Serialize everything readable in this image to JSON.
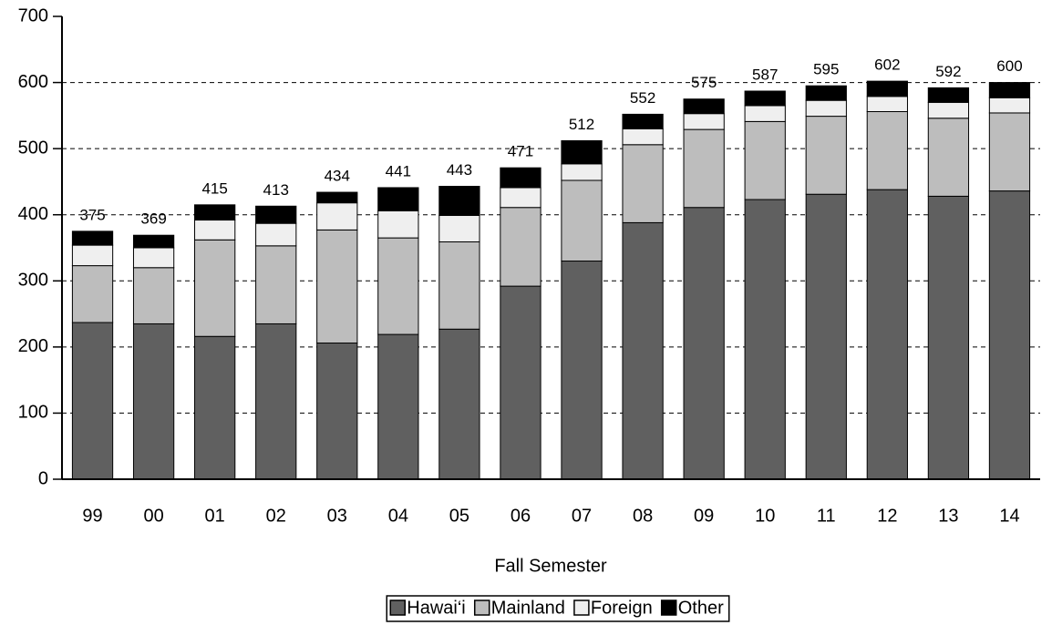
{
  "chart_data": {
    "type": "stacked_bar",
    "xlabel": "Fall Semester",
    "categories": [
      "99",
      "00",
      "01",
      "02",
      "03",
      "04",
      "05",
      "06",
      "07",
      "08",
      "09",
      "10",
      "11",
      "12",
      "13",
      "14"
    ],
    "series": [
      {
        "name": "Hawai‘i",
        "color": "#606060",
        "values": [
          237,
          235,
          216,
          235,
          206,
          219,
          227,
          292,
          330,
          388,
          411,
          423,
          431,
          438,
          428,
          436
        ]
      },
      {
        "name": "Mainland",
        "color": "#bdbdbd",
        "values": [
          86,
          85,
          146,
          118,
          171,
          146,
          132,
          119,
          122,
          118,
          118,
          118,
          118,
          118,
          118,
          118
        ]
      },
      {
        "name": "Foreign",
        "color": "#efefef",
        "values": [
          31,
          30,
          30,
          34,
          41,
          41,
          40,
          30,
          25,
          24,
          24,
          24,
          24,
          23,
          24,
          23
        ]
      },
      {
        "name": "Other",
        "color": "#000000",
        "values": [
          21,
          19,
          23,
          26,
          16,
          35,
          44,
          30,
          35,
          22,
          22,
          22,
          22,
          23,
          22,
          23
        ]
      }
    ],
    "totals": [
      375,
      369,
      415,
      413,
      434,
      441,
      443,
      471,
      512,
      552,
      575,
      587,
      595,
      602,
      592,
      600
    ],
    "ylim": [
      0,
      700
    ],
    "yticks": [
      0,
      100,
      200,
      300,
      400,
      500,
      600,
      700
    ],
    "grid": true
  }
}
